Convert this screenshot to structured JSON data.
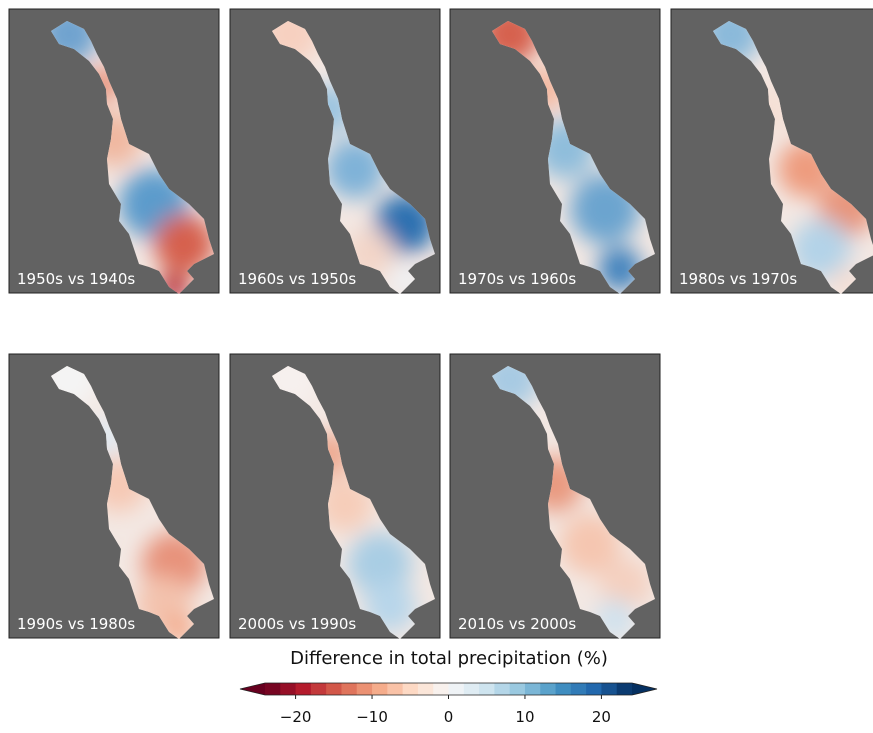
{
  "panels": [
    {
      "label": "1950s vs 1940s"
    },
    {
      "label": "1960s vs 1950s"
    },
    {
      "label": "1970s vs 1960s"
    },
    {
      "label": "1980s vs 1970s"
    },
    {
      "label": "1990s vs 1980s"
    },
    {
      "label": "2000s vs 1990s"
    },
    {
      "label": "2010s vs 2000s"
    }
  ],
  "colorbar": {
    "label": "Difference in total precipitation (%)",
    "lim": [
      -24,
      24
    ],
    "extend": "both",
    "ticks": [
      {
        "value": -20,
        "label": "−20"
      },
      {
        "value": -10,
        "label": "−10"
      },
      0,
      10,
      20
    ]
  }
}
